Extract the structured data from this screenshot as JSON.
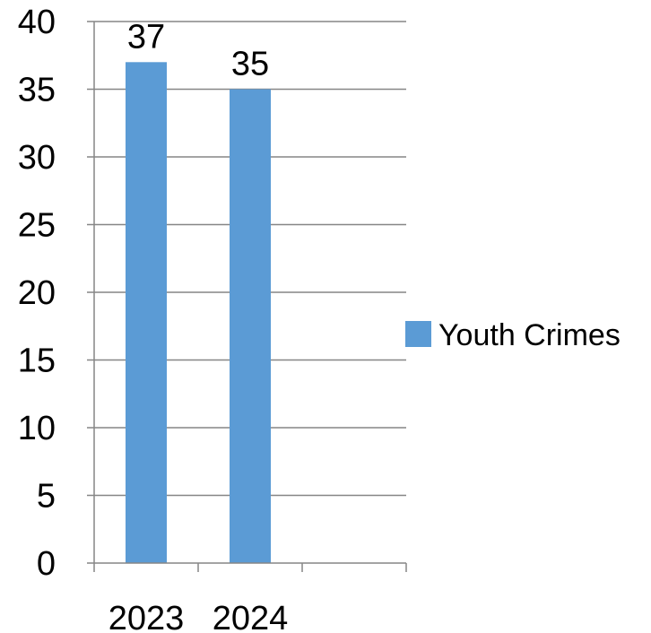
{
  "colors": {
    "bar": "#5b9bd5",
    "grid": "#868686",
    "axis": "#868686",
    "text": "#000000"
  },
  "chart_data": {
    "type": "bar",
    "categories": [
      "2023",
      "2024",
      ""
    ],
    "series": [
      {
        "name": "Youth Crimes",
        "values": [
          37,
          35,
          null
        ]
      }
    ],
    "data_labels": [
      "37",
      "35",
      ""
    ],
    "title": "",
    "xlabel": "",
    "ylabel": "",
    "ylim": [
      0,
      40
    ],
    "yticks": [
      0,
      5,
      10,
      15,
      20,
      25,
      30,
      35,
      40
    ],
    "grid": true,
    "legend_position": "right"
  }
}
